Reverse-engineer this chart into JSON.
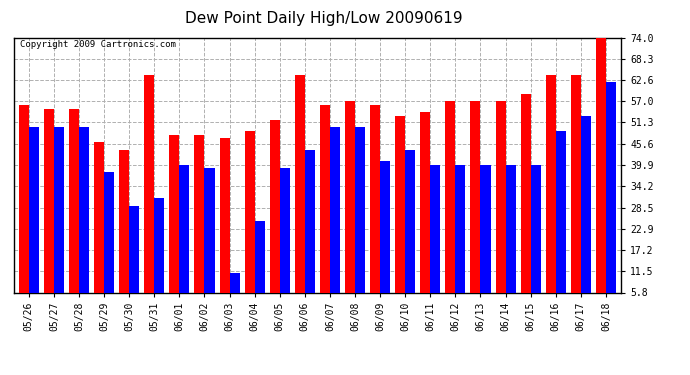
{
  "title": "Dew Point Daily High/Low 20090619",
  "copyright": "Copyright 2009 Cartronics.com",
  "dates": [
    "05/26",
    "05/27",
    "05/28",
    "05/29",
    "05/30",
    "05/31",
    "06/01",
    "06/02",
    "06/03",
    "06/04",
    "06/05",
    "06/06",
    "06/07",
    "06/08",
    "06/09",
    "06/10",
    "06/11",
    "06/12",
    "06/13",
    "06/14",
    "06/15",
    "06/16",
    "06/17",
    "06/18"
  ],
  "highs": [
    56,
    55,
    55,
    46,
    44,
    64,
    48,
    48,
    47,
    49,
    52,
    64,
    56,
    57,
    56,
    53,
    54,
    57,
    57,
    57,
    59,
    64,
    64,
    74
  ],
  "lows": [
    50,
    50,
    50,
    38,
    29,
    31,
    40,
    39,
    11,
    25,
    39,
    44,
    50,
    50,
    41,
    44,
    40,
    40,
    40,
    40,
    40,
    49,
    53,
    62
  ],
  "high_color": "#ff0000",
  "low_color": "#0000ff",
  "background_color": "#ffffff",
  "plot_bg_color": "#ffffff",
  "grid_color": "#b0b0b0",
  "yticks": [
    5.8,
    11.5,
    17.2,
    22.9,
    28.5,
    34.2,
    39.9,
    45.6,
    51.3,
    57.0,
    62.6,
    68.3,
    74.0
  ],
  "ymin": 5.8,
  "ymax": 74.0,
  "bar_width": 0.4,
  "title_fontsize": 11,
  "tick_fontsize": 7,
  "copyright_fontsize": 6.5
}
